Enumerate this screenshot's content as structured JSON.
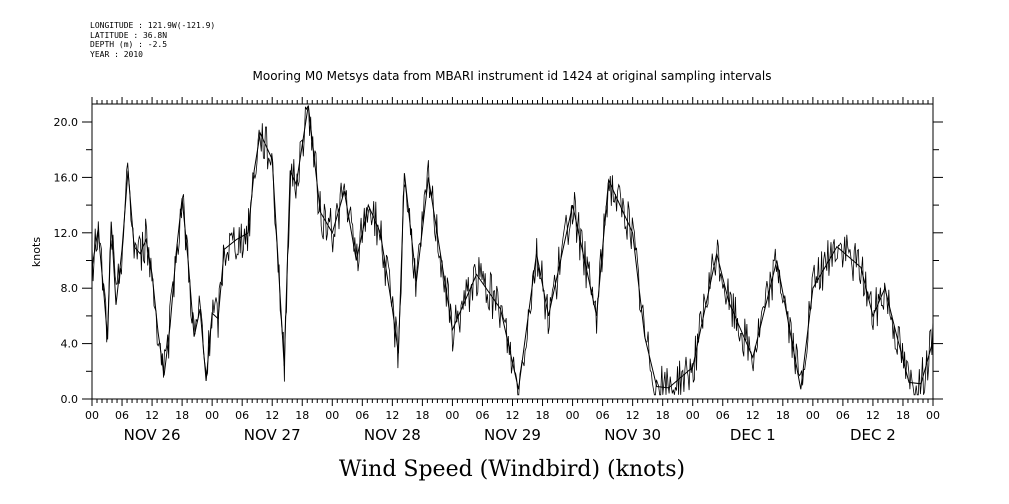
{
  "header": {
    "longitude": "LONGITUDE : 121.9W(-121.9)",
    "latitude": "LATITUDE : 36.8N",
    "depth": "DEPTH (m) : -2.5",
    "year": "YEAR : 2010"
  },
  "chart_data": {
    "type": "line",
    "title": "Mooring M0 Metsys data from MBARI instrument id 1424 at original sampling intervals",
    "xlabel": "Wind Speed (Windbird) (knots)",
    "ylabel": "knots",
    "ylim": [
      0,
      21.3
    ],
    "xlim": [
      0,
      7
    ],
    "x_unit": "days since NOV 26 00:00",
    "yticks": [
      "0.0",
      "4.0",
      "8.0",
      "12.0",
      "16.0",
      "20.0"
    ],
    "ytick_values": [
      0,
      4,
      8,
      12,
      16,
      20
    ],
    "hour_tick_labels": [
      "00",
      "06",
      "12",
      "18",
      "00",
      "06",
      "12",
      "18",
      "00",
      "06",
      "12",
      "18",
      "00",
      "06",
      "12",
      "18",
      "00",
      "06",
      "12",
      "18",
      "00",
      "06",
      "12",
      "18",
      "00",
      "06",
      "12",
      "18",
      "00"
    ],
    "day_labels": [
      "NOV 26",
      "NOV 27",
      "NOV 28",
      "NOV 29",
      "NOV 30",
      "DEC  1",
      "DEC  2"
    ],
    "grid": false,
    "series": [
      {
        "name": "",
        "x": [
          0,
          0.05,
          0.1,
          0.13,
          0.16,
          0.2,
          0.25,
          0.3,
          0.35,
          0.4,
          0.45,
          0.5,
          0.55,
          0.6,
          0.65,
          0.7,
          0.75,
          0.8,
          0.85,
          0.9,
          0.95,
          1.0,
          1.05,
          1.1,
          1.2,
          1.3,
          1.35,
          1.4,
          1.5,
          1.6,
          1.65,
          1.7,
          1.8,
          1.9,
          2.0,
          2.1,
          2.2,
          2.3,
          2.4,
          2.5,
          2.55,
          2.6,
          2.7,
          2.8,
          3.0,
          3.2,
          3.4,
          3.55,
          3.7,
          3.8,
          4.0,
          4.2,
          4.3,
          4.5,
          4.6,
          4.7,
          4.8,
          5.0,
          5.2,
          5.3,
          5.5,
          5.7,
          5.9,
          6.0,
          6.2,
          6.4,
          6.5,
          6.6,
          6.7,
          6.8,
          6.9,
          7.0
        ],
        "y": [
          9.5,
          12.2,
          7.5,
          4.3,
          12.8,
          6.8,
          10.8,
          16.5,
          11,
          10.5,
          11.5,
          9,
          4.8,
          1.7,
          5.3,
          10.5,
          14.5,
          10,
          4.5,
          6.5,
          1.3,
          6.2,
          5.8,
          10.8,
          11.5,
          12,
          16.5,
          19.2,
          17.3,
          2.4,
          16.5,
          15.5,
          21.2,
          13.5,
          12,
          15,
          10,
          14,
          12,
          6.5,
          3.3,
          16.3,
          8.5,
          16,
          5,
          9,
          6.5,
          0.7,
          10.5,
          6,
          14,
          6,
          15.8,
          12,
          4.5,
          0.9,
          0.8,
          2.3,
          10.5,
          7,
          3,
          10,
          0.7,
          8,
          11,
          9.5,
          6,
          8,
          4.5,
          1.2,
          1.1,
          4.2
        ]
      }
    ]
  }
}
